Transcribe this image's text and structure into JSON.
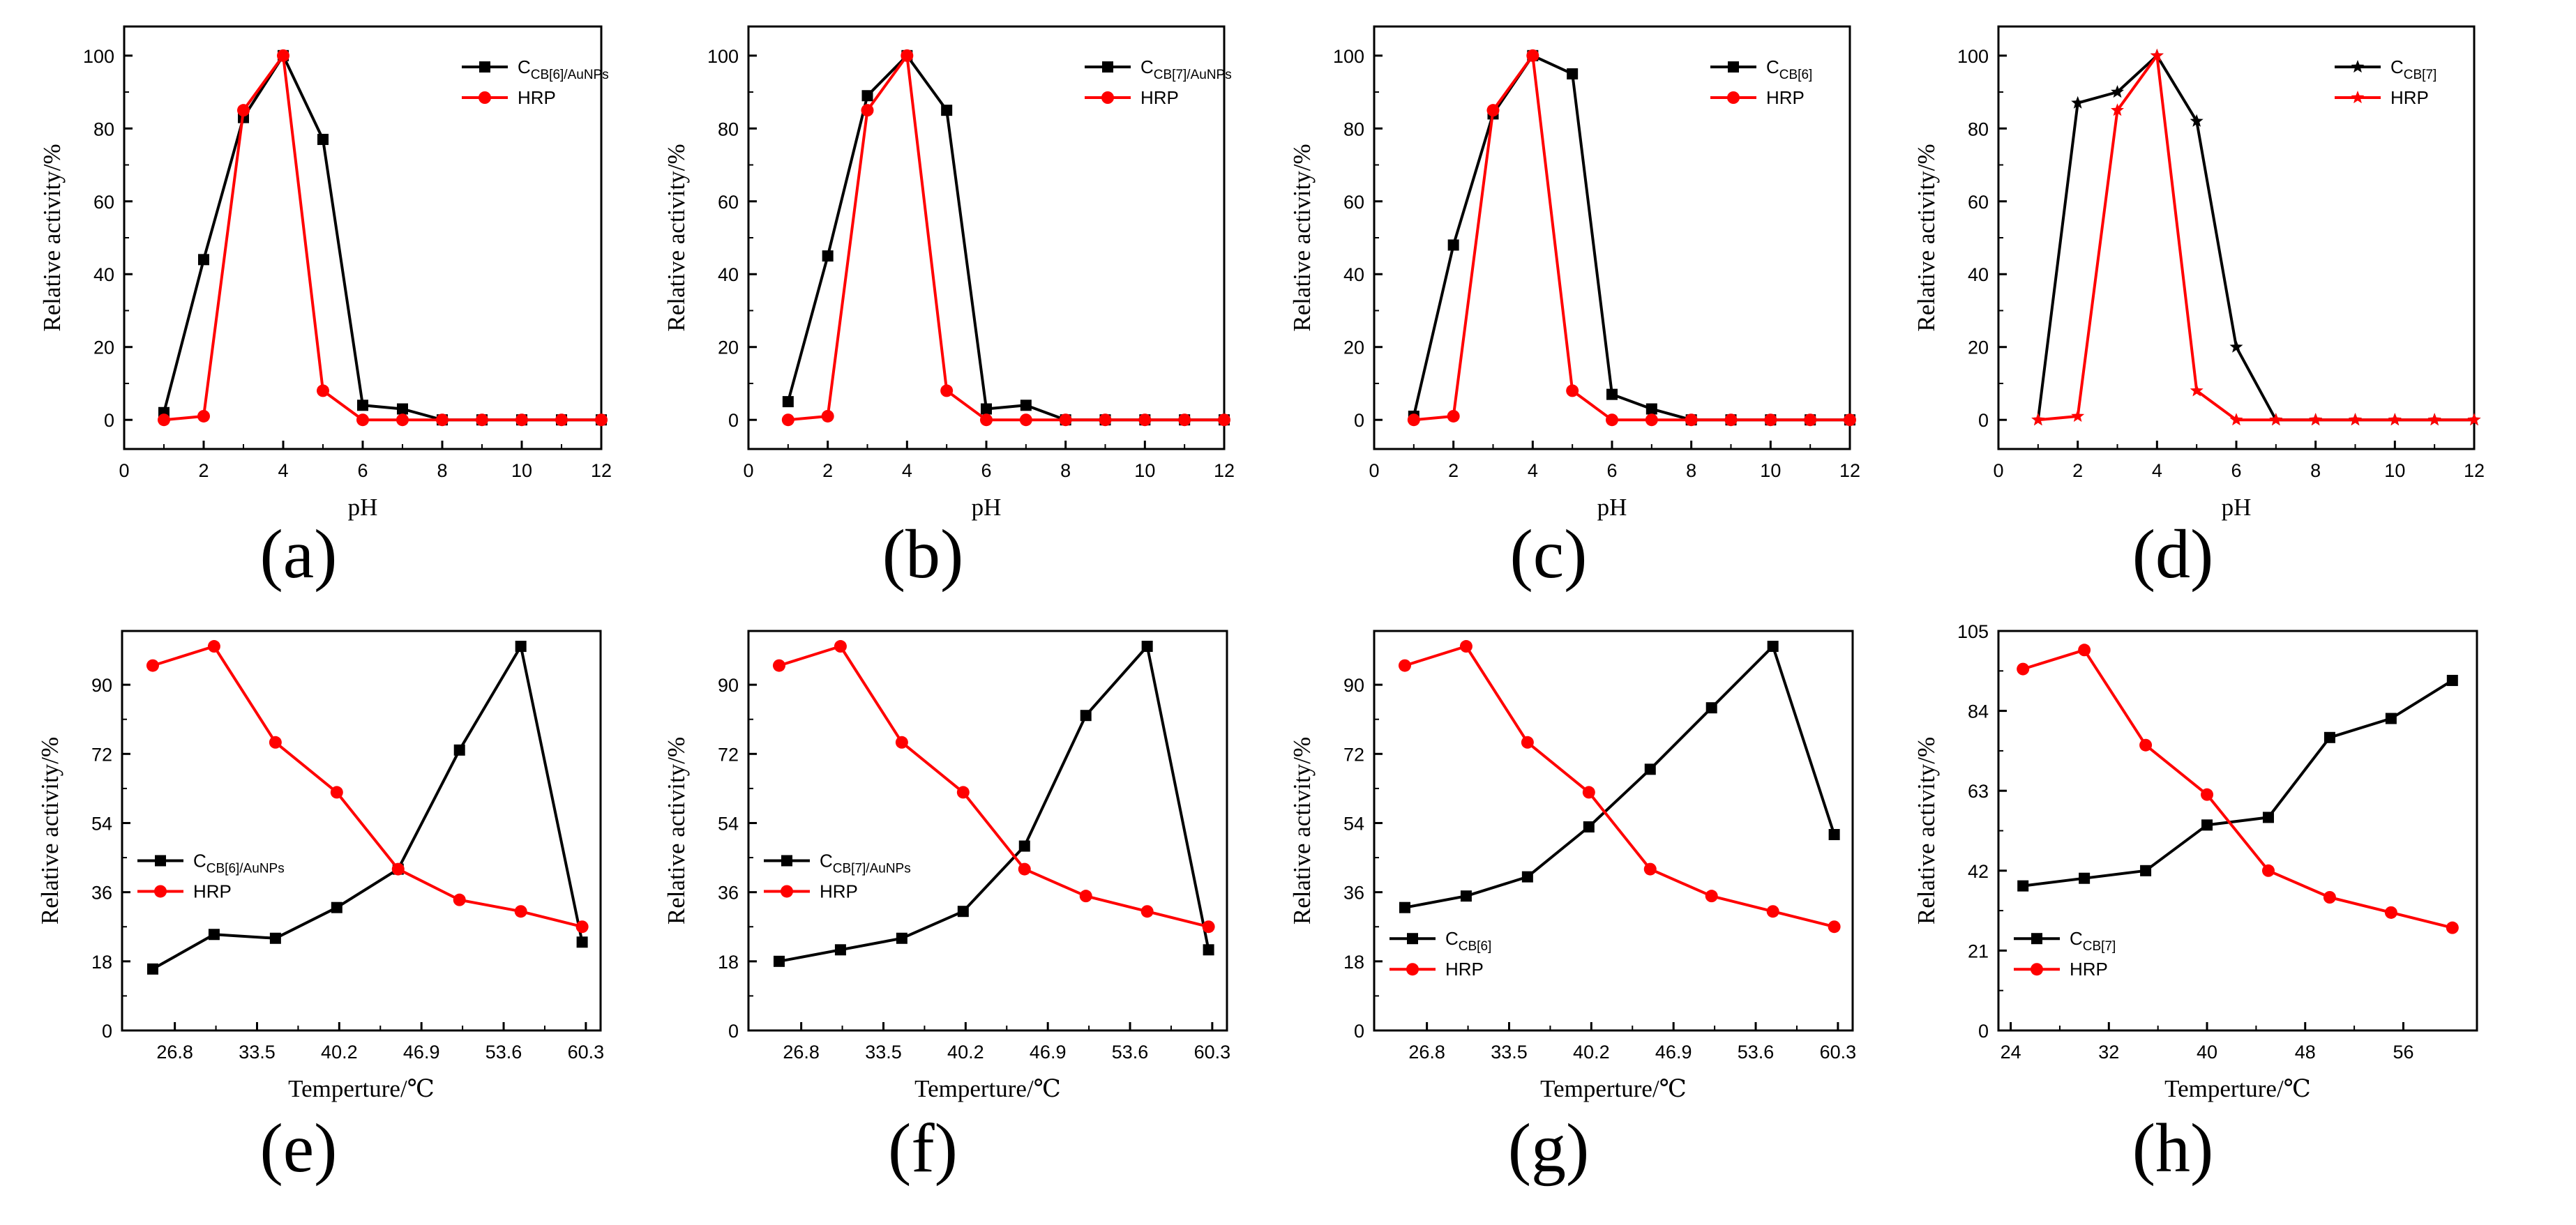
{
  "colors": {
    "series1": "#000000",
    "hrp": "#ff0000",
    "axis": "#000000"
  },
  "chart_data": [
    {
      "id": "a",
      "caption": "(a)",
      "type": "line",
      "xlabel": "pH",
      "ylabel": "Relative activity/%",
      "xlim": [
        0,
        12
      ],
      "ylim": [
        -8,
        108
      ],
      "xticks": [
        0,
        2,
        4,
        6,
        8,
        10,
        12
      ],
      "xtick_labels": [
        "0",
        "2",
        "4",
        "6",
        "8",
        "10",
        "12"
      ],
      "yticks": [
        0,
        20,
        40,
        60,
        80,
        100
      ],
      "ytick_labels": [
        "0",
        "20",
        "40",
        "60",
        "80",
        "100"
      ],
      "legend": {
        "position": "top-right",
        "entries": [
          {
            "base": "C",
            "sub": "CB[6]/AuNPs"
          },
          {
            "base": "HRP",
            "sub": ""
          }
        ]
      },
      "series": [
        {
          "name": "CCB[6]/AuNPs",
          "color": "#000000",
          "marker": "square",
          "x": [
            1,
            2,
            3,
            4,
            5,
            6,
            7,
            8,
            9,
            10,
            11,
            12
          ],
          "y": [
            2,
            44,
            83,
            100,
            77,
            4,
            3,
            0,
            0,
            0,
            0,
            0
          ]
        },
        {
          "name": "HRP",
          "color": "#ff0000",
          "marker": "circle",
          "x": [
            1,
            2,
            3,
            4,
            5,
            6,
            7,
            8,
            9,
            10,
            11,
            12
          ],
          "y": [
            0,
            1,
            85,
            100,
            8,
            0,
            0,
            0,
            0,
            0,
            0,
            0
          ]
        }
      ]
    },
    {
      "id": "b",
      "caption": "(b)",
      "type": "line",
      "xlabel": "pH",
      "ylabel": "Relative activity/%",
      "xlim": [
        0,
        12
      ],
      "ylim": [
        -8,
        108
      ],
      "xticks": [
        0,
        2,
        4,
        6,
        8,
        10,
        12
      ],
      "xtick_labels": [
        "0",
        "2",
        "4",
        "6",
        "8",
        "10",
        "12"
      ],
      "yticks": [
        0,
        20,
        40,
        60,
        80,
        100
      ],
      "ytick_labels": [
        "0",
        "20",
        "40",
        "60",
        "80",
        "100"
      ],
      "legend": {
        "position": "top-right",
        "entries": [
          {
            "base": "C",
            "sub": "CB[7]/AuNPs"
          },
          {
            "base": "HRP",
            "sub": ""
          }
        ]
      },
      "series": [
        {
          "name": "CCB[7]/AuNPs",
          "color": "#000000",
          "marker": "square",
          "x": [
            1,
            2,
            3,
            4,
            5,
            6,
            7,
            8,
            9,
            10,
            11,
            12
          ],
          "y": [
            5,
            45,
            89,
            100,
            85,
            3,
            4,
            0,
            0,
            0,
            0,
            0
          ]
        },
        {
          "name": "HRP",
          "color": "#ff0000",
          "marker": "circle",
          "x": [
            1,
            2,
            3,
            4,
            5,
            6,
            7,
            8,
            9,
            10,
            11,
            12
          ],
          "y": [
            0,
            1,
            85,
            100,
            8,
            0,
            0,
            0,
            0,
            0,
            0,
            0
          ]
        }
      ]
    },
    {
      "id": "c",
      "caption": "(c)",
      "type": "line",
      "xlabel": "pH",
      "ylabel": "Relative activity/%",
      "xlim": [
        0,
        12
      ],
      "ylim": [
        -8,
        108
      ],
      "xticks": [
        0,
        2,
        4,
        6,
        8,
        10,
        12
      ],
      "xtick_labels": [
        "0",
        "2",
        "4",
        "6",
        "8",
        "10",
        "12"
      ],
      "yticks": [
        0,
        20,
        40,
        60,
        80,
        100
      ],
      "ytick_labels": [
        "0",
        "20",
        "40",
        "60",
        "80",
        "100"
      ],
      "legend": {
        "position": "top-right",
        "entries": [
          {
            "base": "C",
            "sub": "CB[6]"
          },
          {
            "base": "HRP",
            "sub": ""
          }
        ]
      },
      "series": [
        {
          "name": "CCB[6]",
          "color": "#000000",
          "marker": "square",
          "x": [
            1,
            2,
            3,
            4,
            5,
            6,
            7,
            8,
            9,
            10,
            11,
            12
          ],
          "y": [
            1,
            48,
            84,
            100,
            95,
            7,
            3,
            0,
            0,
            0,
            0,
            0
          ]
        },
        {
          "name": "HRP",
          "color": "#ff0000",
          "marker": "circle",
          "x": [
            1,
            2,
            3,
            4,
            5,
            6,
            7,
            8,
            9,
            10,
            11,
            12
          ],
          "y": [
            0,
            1,
            85,
            100,
            8,
            0,
            0,
            0,
            0,
            0,
            0,
            0
          ]
        }
      ]
    },
    {
      "id": "d",
      "caption": "(d)",
      "type": "line",
      "xlabel": "pH",
      "ylabel": "Relative activity/%",
      "xlim": [
        0,
        12
      ],
      "ylim": [
        -8,
        108
      ],
      "xticks": [
        0,
        2,
        4,
        6,
        8,
        10,
        12
      ],
      "xtick_labels": [
        "0",
        "2",
        "4",
        "6",
        "8",
        "10",
        "12"
      ],
      "yticks": [
        0,
        20,
        40,
        60,
        80,
        100
      ],
      "ytick_labels": [
        "0",
        "20",
        "40",
        "60",
        "80",
        "100"
      ],
      "legend": {
        "position": "top-right",
        "entries": [
          {
            "base": "C",
            "sub": "CB[7]"
          },
          {
            "base": "HRP",
            "sub": ""
          }
        ]
      },
      "series": [
        {
          "name": "CCB[7]",
          "color": "#000000",
          "marker": "star",
          "x": [
            1,
            2,
            3,
            4,
            5,
            6,
            7,
            8,
            9,
            10,
            11,
            12
          ],
          "y": [
            0,
            87,
            90,
            100,
            82,
            20,
            0,
            0,
            0,
            0,
            0,
            0
          ]
        },
        {
          "name": "HRP",
          "color": "#ff0000",
          "marker": "star",
          "x": [
            1,
            2,
            3,
            4,
            5,
            6,
            7,
            8,
            9,
            10,
            11,
            12
          ],
          "y": [
            0,
            1,
            85,
            100,
            8,
            0,
            0,
            0,
            0,
            0,
            0,
            0
          ]
        }
      ]
    },
    {
      "id": "e",
      "caption": "(e)",
      "type": "line",
      "xlabel": "Temperture/℃",
      "ylabel": "Relative activity/%",
      "xlim": [
        22.5,
        61.5
      ],
      "ylim": [
        0,
        104
      ],
      "xticks": [
        26.8,
        33.5,
        40.2,
        46.9,
        53.6,
        60.3
      ],
      "xtick_labels": [
        "26.8",
        "33.5",
        "40.2",
        "46.9",
        "53.6",
        "60.3"
      ],
      "yticks": [
        0,
        18,
        36,
        54,
        72,
        90
      ],
      "ytick_labels": [
        "0",
        "18",
        "36",
        "54",
        "72",
        "90"
      ],
      "legend": {
        "position": "center-left",
        "entries": [
          {
            "base": "C",
            "sub": "CB[6]/AuNPs"
          },
          {
            "base": "HRP",
            "sub": ""
          }
        ]
      },
      "series": [
        {
          "name": "CCB[6]/AuNPs",
          "color": "#000000",
          "marker": "square",
          "x": [
            25,
            30,
            35,
            40,
            45,
            50,
            55,
            60
          ],
          "y": [
            16,
            25,
            24,
            32,
            42,
            73,
            100,
            23
          ]
        },
        {
          "name": "HRP",
          "color": "#ff0000",
          "marker": "circle",
          "x": [
            25,
            30,
            35,
            40,
            45,
            50,
            55,
            60
          ],
          "y": [
            95,
            100,
            75,
            62,
            42,
            34,
            31,
            27
          ]
        }
      ]
    },
    {
      "id": "f",
      "caption": "(f)",
      "type": "line",
      "xlabel": "Temperture/℃",
      "ylabel": "Relative activity/%",
      "xlim": [
        22.5,
        61.5
      ],
      "ylim": [
        0,
        104
      ],
      "xticks": [
        26.8,
        33.5,
        40.2,
        46.9,
        53.6,
        60.3
      ],
      "xtick_labels": [
        "26.8",
        "33.5",
        "40.2",
        "46.9",
        "53.6",
        "60.3"
      ],
      "yticks": [
        0,
        18,
        36,
        54,
        72,
        90
      ],
      "ytick_labels": [
        "0",
        "18",
        "36",
        "54",
        "72",
        "90"
      ],
      "legend": {
        "position": "center-left",
        "entries": [
          {
            "base": "C",
            "sub": "CB[7]/AuNPs"
          },
          {
            "base": "HRP",
            "sub": ""
          }
        ]
      },
      "series": [
        {
          "name": "CCB[7]/AuNPs",
          "color": "#000000",
          "marker": "square",
          "x": [
            25,
            30,
            35,
            40,
            45,
            50,
            55,
            60
          ],
          "y": [
            18,
            21,
            24,
            31,
            48,
            82,
            100,
            21
          ]
        },
        {
          "name": "HRP",
          "color": "#ff0000",
          "marker": "circle",
          "x": [
            25,
            30,
            35,
            40,
            45,
            50,
            55,
            60
          ],
          "y": [
            95,
            100,
            75,
            62,
            42,
            35,
            31,
            27
          ]
        }
      ]
    },
    {
      "id": "g",
      "caption": "(g)",
      "type": "line",
      "xlabel": "Temperture/℃",
      "ylabel": "Relative activity/%",
      "xlim": [
        22.5,
        61.5
      ],
      "ylim": [
        0,
        104
      ],
      "xticks": [
        26.8,
        33.5,
        40.2,
        46.9,
        53.6,
        60.3
      ],
      "xtick_labels": [
        "26.8",
        "33.5",
        "40.2",
        "46.9",
        "53.6",
        "60.3"
      ],
      "yticks": [
        0,
        18,
        36,
        54,
        72,
        90
      ],
      "ytick_labels": [
        "0",
        "18",
        "36",
        "54",
        "72",
        "90"
      ],
      "legend": {
        "position": "bottom-left",
        "entries": [
          {
            "base": "C",
            "sub": "CB[6]"
          },
          {
            "base": "HRP",
            "sub": ""
          }
        ]
      },
      "series": [
        {
          "name": "CCB[6]",
          "color": "#000000",
          "marker": "square",
          "x": [
            25,
            30,
            35,
            40,
            45,
            50,
            55,
            60
          ],
          "y": [
            32,
            35,
            40,
            53,
            68,
            84,
            100,
            51
          ]
        },
        {
          "name": "HRP",
          "color": "#ff0000",
          "marker": "circle",
          "x": [
            25,
            30,
            35,
            40,
            45,
            50,
            55,
            60
          ],
          "y": [
            95,
            100,
            75,
            62,
            42,
            35,
            31,
            27
          ]
        }
      ]
    },
    {
      "id": "h",
      "caption": "(h)",
      "type": "line",
      "xlabel": "Temperture/℃",
      "ylabel": "Relative activity/%",
      "xlim": [
        23,
        62
      ],
      "ylim": [
        0,
        105
      ],
      "xticks": [
        24,
        32,
        40,
        48,
        56
      ],
      "xtick_labels": [
        "24",
        "32",
        "40",
        "48",
        "56"
      ],
      "yticks": [
        0,
        21,
        42,
        63,
        84,
        105
      ],
      "ytick_labels": [
        "0",
        "21",
        "42",
        "63",
        "84",
        "105"
      ],
      "legend": {
        "position": "bottom-left",
        "entries": [
          {
            "base": "C",
            "sub": "CB[7]"
          },
          {
            "base": "HRP",
            "sub": ""
          }
        ]
      },
      "series": [
        {
          "name": "CCB[7]",
          "color": "#000000",
          "marker": "square",
          "x": [
            25,
            30,
            35,
            40,
            45,
            50,
            55,
            60
          ],
          "y": [
            38,
            40,
            42,
            54,
            56,
            77,
            82,
            92
          ]
        },
        {
          "name": "HRP",
          "color": "#ff0000",
          "marker": "circle",
          "x": [
            25,
            30,
            35,
            40,
            45,
            50,
            55,
            60
          ],
          "y": [
            95,
            100,
            75,
            62,
            42,
            35,
            31,
            27
          ]
        }
      ]
    }
  ]
}
